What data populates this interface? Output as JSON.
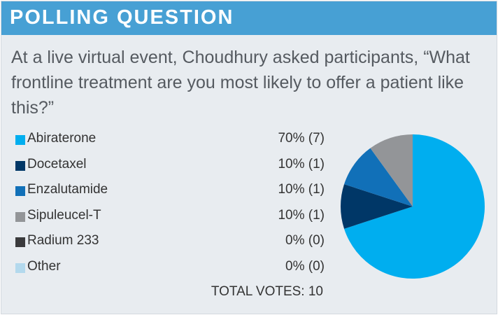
{
  "header": {
    "title": "POLLING QUESTION"
  },
  "question": "At a live virtual event, Choudhury asked participants, “What frontline treatment are you most likely to offer a patient like this?”",
  "chart_data": {
    "type": "pie",
    "categories": [
      "Abiraterone",
      "Docetaxel",
      "Enzalutamide",
      "Sipuleucel-T",
      "Radium 233",
      "Other"
    ],
    "values": [
      70,
      10,
      10,
      10,
      0,
      0
    ],
    "votes": [
      7,
      1,
      1,
      1,
      0,
      0
    ],
    "labels": [
      "70% (7)",
      "10% (1)",
      "10% (1)",
      "10% (1)",
      "0% (0)",
      "0% (0)"
    ],
    "colors": [
      "#00aeef",
      "#003767",
      "#1170b8",
      "#939598",
      "#3a3a3c",
      "#b3d9ed"
    ],
    "total_label": "TOTAL VOTES: 10",
    "start": "top",
    "direction": "clockwise"
  }
}
